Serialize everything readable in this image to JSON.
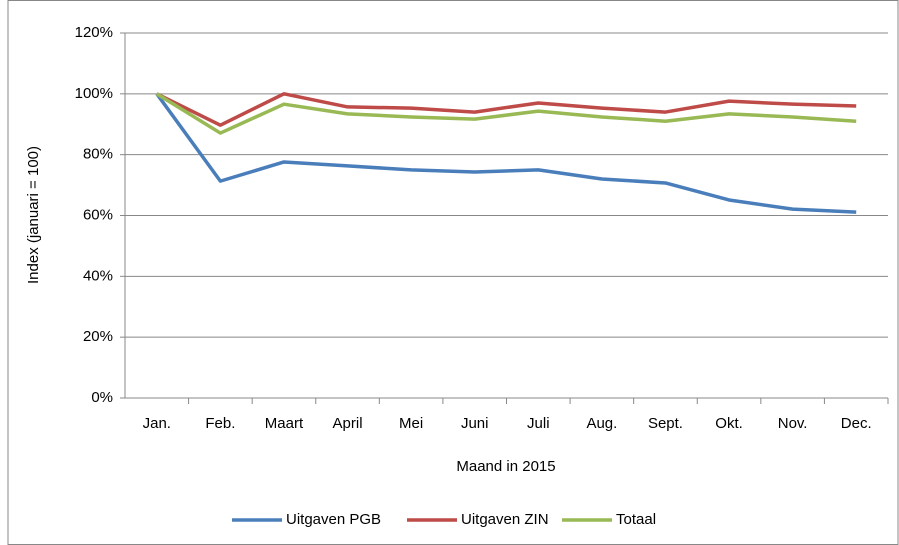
{
  "chart_data": {
    "type": "line",
    "ylabel": "Index (januari = 100)",
    "xlabel": "Maand in 2015",
    "categories": [
      "Jan.",
      "Feb.",
      "Maart",
      "April",
      "Mei",
      "Juni",
      "Juli",
      "Aug.",
      "Sept.",
      "Okt.",
      "Nov.",
      "Dec."
    ],
    "series": [
      {
        "name": "Uitgaven PGB",
        "color": "#4a7ebb",
        "values": [
          100,
          71.3,
          77.6,
          76.3,
          75,
          74.3,
          75,
          72,
          70.7,
          65.1,
          62.1,
          61.1
        ]
      },
      {
        "name": "Uitgaven ZIN",
        "color": "#be4b48",
        "values": [
          100,
          89.7,
          100,
          95.7,
          95.3,
          94,
          97,
          95.3,
          94,
          97.6,
          96.6,
          96
        ]
      },
      {
        "name": "Totaal",
        "color": "#98b954",
        "values": [
          100,
          87.1,
          96.6,
          93.4,
          92.4,
          91.7,
          94.3,
          92.4,
          91,
          93.4,
          92.4,
          91
        ]
      }
    ],
    "ylim": [
      0,
      120
    ],
    "yticks": [
      {
        "value": 0,
        "label": "0%"
      },
      {
        "value": 20,
        "label": "20%"
      },
      {
        "value": 40,
        "label": "40%"
      },
      {
        "value": 60,
        "label": "60%"
      },
      {
        "value": 80,
        "label": "80%"
      },
      {
        "value": 100,
        "label": "100%"
      },
      {
        "value": 120,
        "label": "120%"
      }
    ],
    "grid": true,
    "legend": "bottom"
  }
}
